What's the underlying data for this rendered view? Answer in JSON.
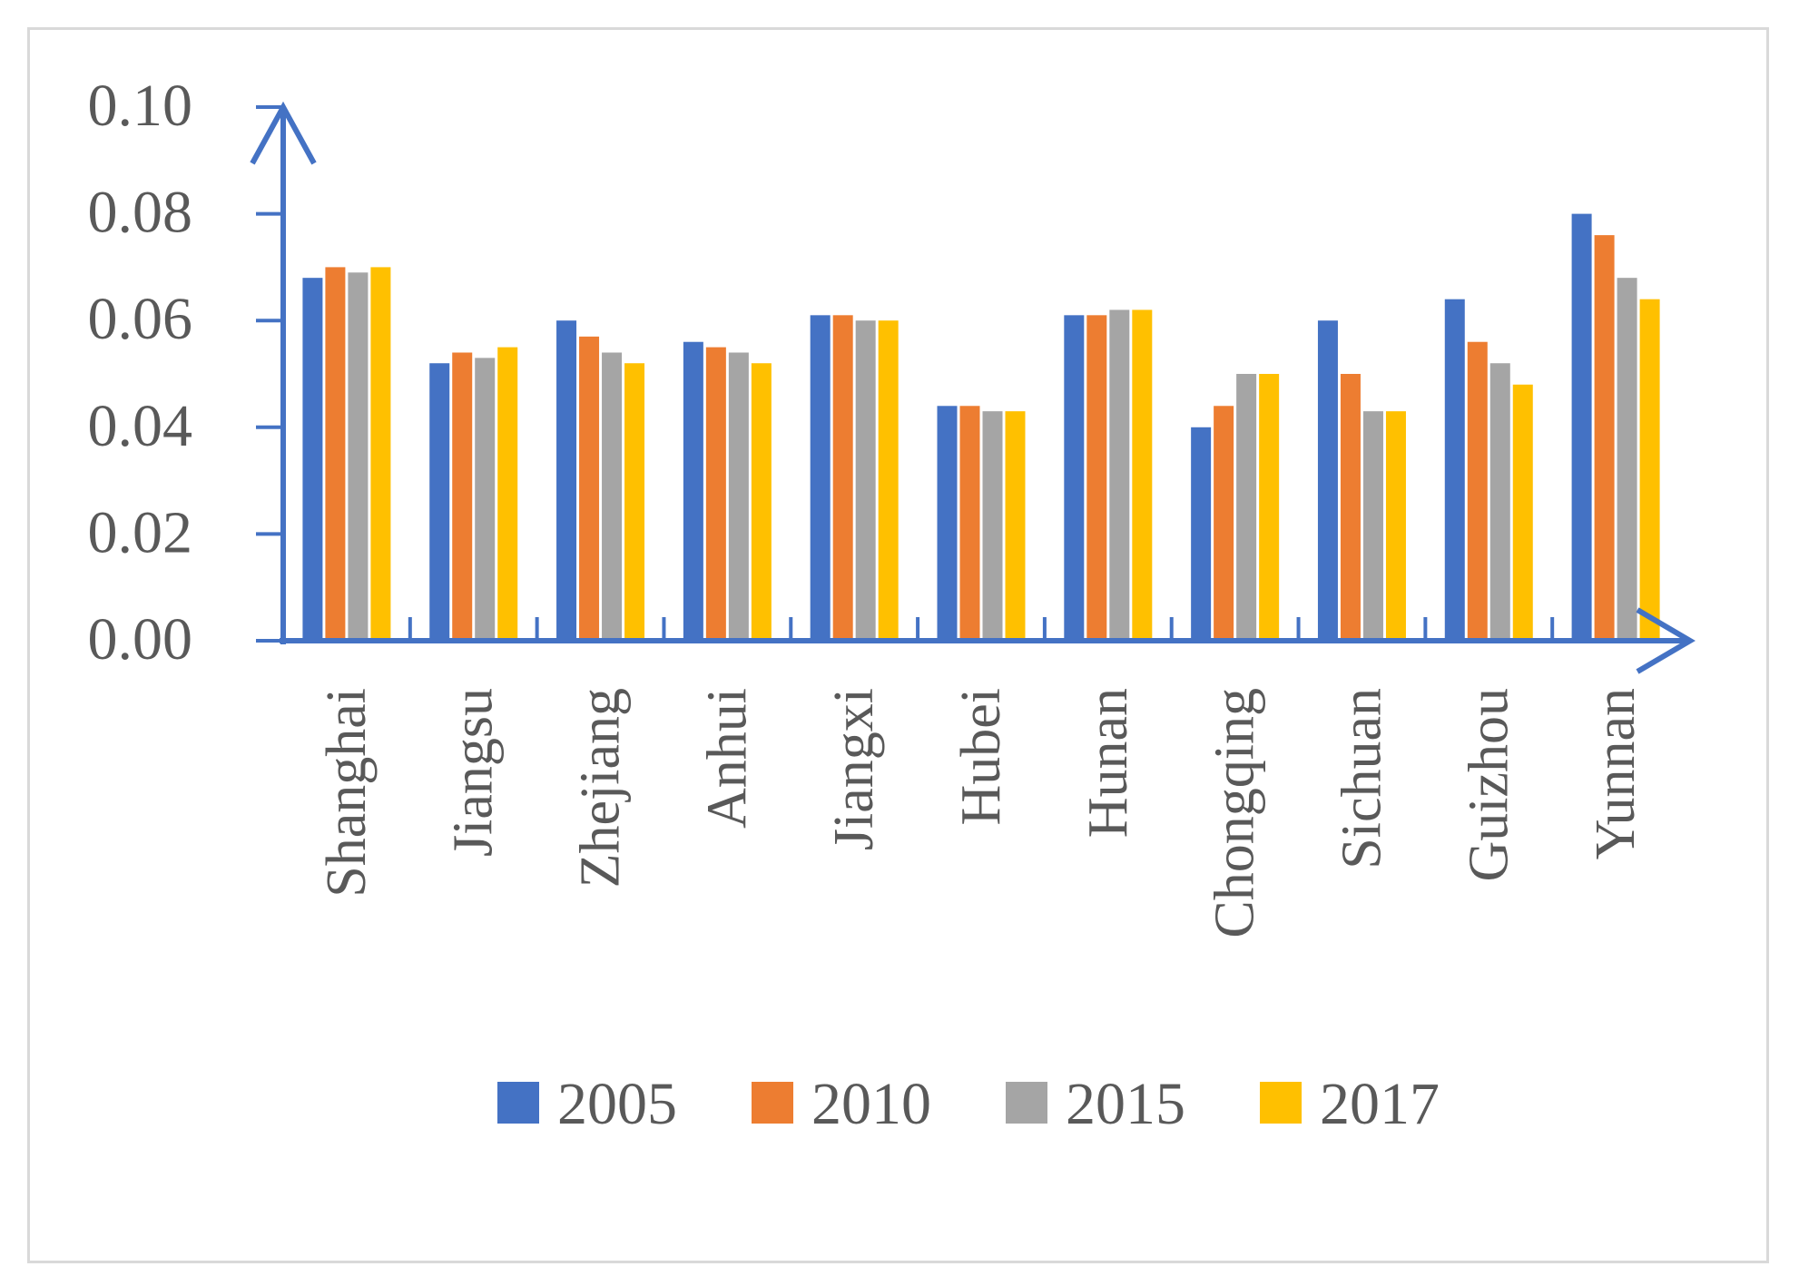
{
  "chart_data": {
    "type": "bar",
    "title": "",
    "xlabel": "",
    "ylabel": "",
    "ylim": [
      0,
      0.1
    ],
    "y_ticks": [
      "0.00",
      "0.02",
      "0.04",
      "0.06",
      "0.08",
      "0.10"
    ],
    "y_tick_values": [
      0,
      0.02,
      0.04,
      0.06,
      0.08,
      0.1
    ],
    "grid": false,
    "legend_position": "bottom",
    "categories": [
      "Shanghai",
      "Jiangsu",
      "Zhejiang",
      "Anhui",
      "Jiangxi",
      "Hubei",
      "Hunan",
      "Chongqing",
      "Sichuan",
      "Guizhou",
      "Yunnan"
    ],
    "series": [
      {
        "name": "2005",
        "color": "#4472c4",
        "values": [
          0.068,
          0.052,
          0.06,
          0.056,
          0.061,
          0.044,
          0.061,
          0.04,
          0.06,
          0.064,
          0.08
        ]
      },
      {
        "name": "2010",
        "color": "#ed7d31",
        "values": [
          0.07,
          0.054,
          0.057,
          0.055,
          0.061,
          0.044,
          0.061,
          0.044,
          0.05,
          0.056,
          0.076
        ]
      },
      {
        "name": "2015",
        "color": "#a5a5a5",
        "values": [
          0.069,
          0.053,
          0.054,
          0.054,
          0.06,
          0.043,
          0.062,
          0.05,
          0.043,
          0.052,
          0.068
        ]
      },
      {
        "name": "2017",
        "color": "#ffc000",
        "values": [
          0.07,
          0.055,
          0.052,
          0.052,
          0.06,
          0.043,
          0.062,
          0.05,
          0.043,
          0.048,
          0.064
        ]
      }
    ],
    "axis_color": "#4472c4"
  }
}
